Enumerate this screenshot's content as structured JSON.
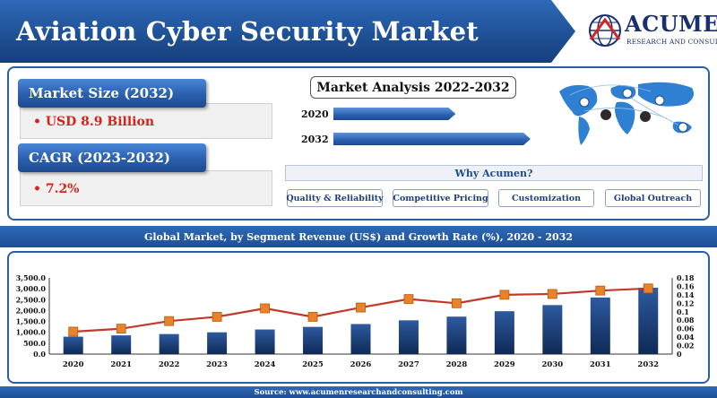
{
  "header": {
    "title": "Aviation Cyber Security Market",
    "brand": "ACUMEN",
    "brand_sub": "RESEARCH AND CONSULTING"
  },
  "stats": {
    "market_size_label": "Market Size (2032)",
    "market_size_value": "• USD 8.9 Billion",
    "cagr_label": "CAGR (2023-2032)",
    "cagr_value": "• 7.2%"
  },
  "analysis": {
    "title": "Market Analysis 2022-2032",
    "bars": [
      {
        "label": "2020",
        "fraction": 0.62
      },
      {
        "label": "2032",
        "fraction": 1.0
      }
    ]
  },
  "why": {
    "title": "Why Acumen?",
    "reasons": [
      "Quality & Reliability",
      "Competitive Pricing",
      "Customization",
      "Global Outreach"
    ]
  },
  "segment_title": "Global Market, by Segment Revenue (US$) and Growth Rate (%), 2020 - 2032",
  "source": "Source: www.acumenresearchandconsulting.com",
  "colors": {
    "brand_blue": "#1e4f94",
    "bar_dark": "#0f2a55",
    "line_red": "#c0392b",
    "marker_orange": "#e8832a",
    "value_red": "#d8231b"
  },
  "chart_data": {
    "type": "bar",
    "categories": [
      "2020",
      "2021",
      "2022",
      "2023",
      "2024",
      "2025",
      "2026",
      "2027",
      "2028",
      "2029",
      "2030",
      "2031",
      "2032"
    ],
    "series": [
      {
        "values": [
          800,
          860,
          920,
          1000,
          1130,
          1250,
          1380,
          1550,
          1720,
          1970,
          2250,
          2600,
          3050
        ]
      },
      {
        "type": "line",
        "axis": "right",
        "values": [
          0.053,
          0.06,
          0.078,
          0.088,
          0.108,
          0.088,
          0.11,
          0.13,
          0.12,
          0.14,
          0.142,
          0.15,
          0.155
        ]
      }
    ],
    "yticks_left": [
      "0.0",
      "500.0",
      "1,000.0",
      "1,500.0",
      "2,000.0",
      "2,500.0",
      "3,000.0",
      "3,500.0"
    ],
    "yticks_right": [
      "0",
      "0.02",
      "0.04",
      "0.06",
      "0.08",
      "0.1",
      "0.12",
      "0.14",
      "0.16",
      "0.18"
    ],
    "ylim_left": [
      0,
      3500
    ],
    "ylim_right": [
      0,
      0.18
    ],
    "grid": false
  }
}
